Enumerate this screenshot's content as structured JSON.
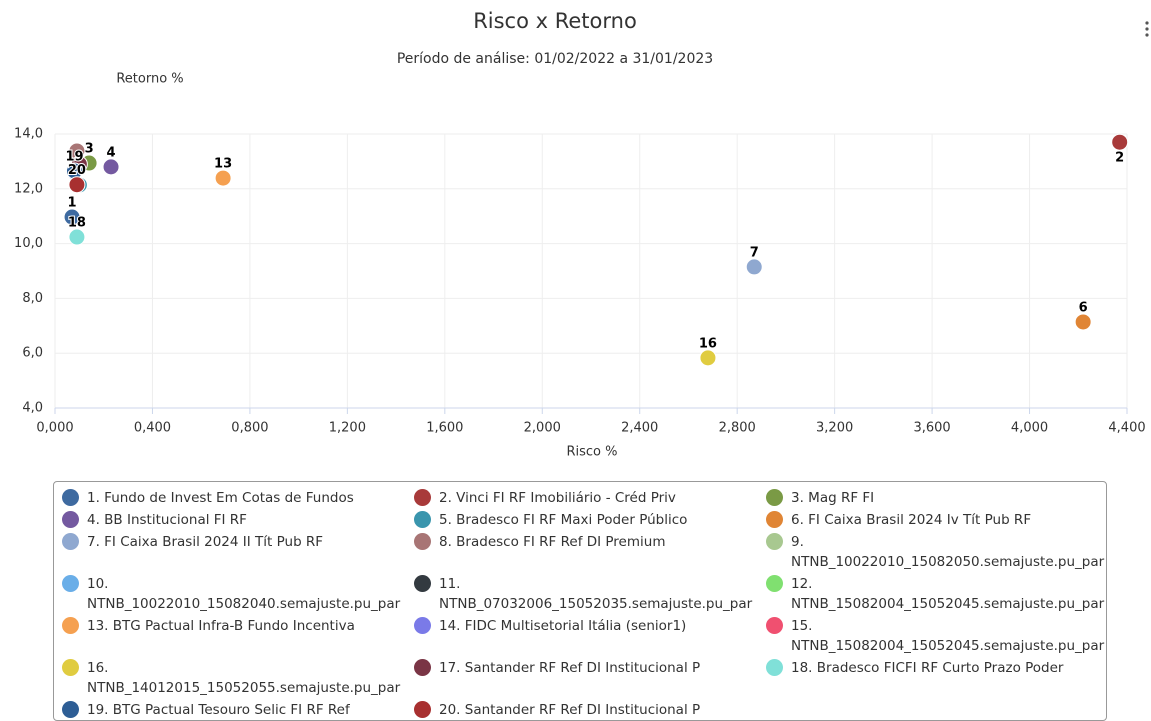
{
  "chart_data": {
    "type": "scatter",
    "title": "Risco x Retorno",
    "subtitle": "Período de análise: 01/02/2022 a 31/01/2023",
    "y_label": "Retorno %",
    "x_label": "Risco %",
    "xlim": [
      0,
      4.4
    ],
    "ylim": [
      4,
      14
    ],
    "grid": true,
    "xticks": [
      {
        "value": 0,
        "label": "0,000"
      },
      {
        "value": 0.4,
        "label": "0,400"
      },
      {
        "value": 0.8,
        "label": "0,800"
      },
      {
        "value": 1.2,
        "label": "1,200"
      },
      {
        "value": 1.6,
        "label": "1,600"
      },
      {
        "value": 2.0,
        "label": "2,000"
      },
      {
        "value": 2.4,
        "label": "2,400"
      },
      {
        "value": 2.8,
        "label": "2,800"
      },
      {
        "value": 3.2,
        "label": "3,200"
      },
      {
        "value": 3.6,
        "label": "3,600"
      },
      {
        "value": 4.0,
        "label": "4,000"
      },
      {
        "value": 4.4,
        "label": "4,400"
      }
    ],
    "yticks": [
      {
        "value": 4,
        "label": "4,0"
      },
      {
        "value": 6,
        "label": "6,0"
      },
      {
        "value": 8,
        "label": "8,0"
      },
      {
        "value": 10,
        "label": "10,0"
      },
      {
        "value": 12,
        "label": "12,0"
      },
      {
        "value": 14,
        "label": "14,0"
      }
    ],
    "series": [
      {
        "name": "1. Fundo de Invest Em Cotas de Fundos",
        "color": "#3e6aa0",
        "label": "1",
        "x": [
          0.07
        ],
        "values": [
          10.97
        ]
      },
      {
        "name": "2. Vinci FI RF Imobiliário - Créd Priv",
        "color": "#a83a3a",
        "label": "2",
        "x": [
          4.37
        ],
        "values": [
          13.7
        ]
      },
      {
        "name": "3. Mag RF FI",
        "color": "#7a9a45",
        "label": "3",
        "x": [
          0.14
        ],
        "values": [
          12.94
        ]
      },
      {
        "name": "4. BB Institucional FI RF",
        "color": "#7459a0",
        "label": "4",
        "x": [
          0.23
        ],
        "values": [
          12.8
        ]
      },
      {
        "name": "5. Bradesco FI RF Maxi Poder Público",
        "color": "#3a95ad",
        "x": [
          0.1
        ],
        "values": [
          12.14
        ]
      },
      {
        "name": "6. FI Caixa Brasil 2024 Iv Tít Pub RF",
        "color": "#e08535",
        "label": "6",
        "x": [
          4.22
        ],
        "values": [
          7.14
        ]
      },
      {
        "name": "7. FI Caixa Brasil 2024 II Tít Pub RF",
        "color": "#8fa8d0",
        "label": "7",
        "x": [
          2.87
        ],
        "values": [
          9.15
        ]
      },
      {
        "name": "8. Bradesco FI RF Ref DI Premium",
        "color": "#a87575",
        "x": [
          0.09
        ],
        "values": [
          13.38
        ]
      },
      {
        "name": "9. NTNB_10022010_15082050.semajuste.pu_par",
        "color": "#a8c890",
        "x": [
          2.68
        ],
        "values": [
          5.83
        ]
      },
      {
        "name": "10. NTNB_10022010_15082040.semajuste.pu_par",
        "color": "#6aaee8",
        "x": [
          2.68
        ],
        "values": [
          5.83
        ]
      },
      {
        "name": "11. NTNB_07032006_15052035.semajuste.pu_par",
        "color": "#333a40",
        "x": [
          2.68
        ],
        "values": [
          5.83
        ]
      },
      {
        "name": "12. NTNB_15082004_15052045.semajuste.pu_par",
        "color": "#80e070",
        "x": [
          2.68
        ],
        "values": [
          5.83
        ]
      },
      {
        "name": "13. BTG Pactual Infra-B Fundo Incentiva",
        "color": "#f5a050",
        "label": "13",
        "x": [
          0.69
        ],
        "values": [
          12.39
        ]
      },
      {
        "name": "14. FIDC Multisetorial Itália (senior1)",
        "color": "#7a7ae8",
        "x": [
          0.08
        ],
        "values": [
          12.6
        ]
      },
      {
        "name": "15. NTNB_15082004_15052045.semajuste.pu_par",
        "color": "#f05070",
        "x": [
          2.68
        ],
        "values": [
          5.83
        ]
      },
      {
        "name": "16. NTNB_14012015_15052055.semajuste.pu_par",
        "color": "#e0cc40",
        "label": "16",
        "x": [
          2.68
        ],
        "values": [
          5.83
        ]
      },
      {
        "name": "17. Santander RF Ref DI Institucional P",
        "color": "#7a3545",
        "x": [
          0.1
        ],
        "values": [
          12.9
        ]
      },
      {
        "name": "18. Bradesco FICFI RF Curto Prazo Poder",
        "color": "#80e0d8",
        "label": "18",
        "x": [
          0.09
        ],
        "values": [
          10.24
        ]
      },
      {
        "name": "19. BTG Pactual Tesouro Selic FI RF Ref",
        "color": "#2e5e95",
        "label": "19",
        "x": [
          0.08
        ],
        "values": [
          12.65
        ]
      },
      {
        "name": "20. Santander RF Ref DI Institucional P",
        "color": "#a83030",
        "label": "20",
        "x": [
          0.09
        ],
        "values": [
          12.15
        ]
      }
    ]
  }
}
